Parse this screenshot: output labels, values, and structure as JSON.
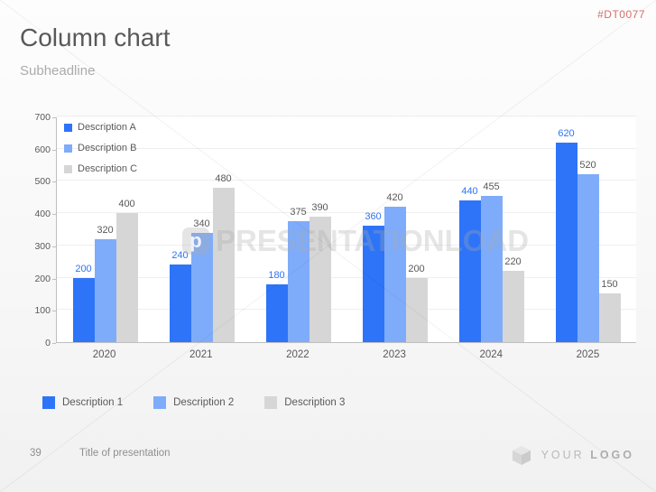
{
  "meta": {
    "product_code": "#DT0077",
    "product_code_color": "#D4706A"
  },
  "header": {
    "title": "Column chart",
    "subtitle": "Subheadline"
  },
  "colors": {
    "axis": "#BFBFBF",
    "grid": "#EFEFEF",
    "tick_label": "#595959",
    "plot_background": "#FFFFFF"
  },
  "chart_data": {
    "type": "bar",
    "title": "",
    "xlabel": "",
    "ylabel": "",
    "categories": [
      "2020",
      "2021",
      "2022",
      "2023",
      "2024",
      "2025"
    ],
    "series": [
      {
        "name": "Description A",
        "color": "#2E74F8",
        "label_color": "#2E74F8",
        "values": [
          200,
          240,
          180,
          360,
          440,
          620
        ]
      },
      {
        "name": "Description B",
        "color": "#7FACFA",
        "label_color": "#595959",
        "values": [
          320,
          340,
          375,
          420,
          455,
          520
        ]
      },
      {
        "name": "Description C",
        "color": "#D6D6D6",
        "label_color": "#595959",
        "values": [
          400,
          480,
          390,
          200,
          220,
          150
        ]
      }
    ],
    "ylim": [
      0,
      700
    ],
    "ytick_step": 100,
    "grid": true,
    "legend_position": "inside-top-left",
    "data_labels": true
  },
  "bottom_legend": {
    "items": [
      {
        "label": "Description 1",
        "color": "#2E74F8"
      },
      {
        "label": "Description 2",
        "color": "#7FACFA"
      },
      {
        "label": "Description 3",
        "color": "#D6D6D6"
      }
    ]
  },
  "footer": {
    "page_number": "39",
    "presentation_title": "Title of presentation"
  },
  "logo": {
    "word1": "YOUR",
    "word2": "LOGO"
  },
  "watermark": {
    "text": "PRESENTATIONLOAD",
    "logo_letter": "p"
  }
}
